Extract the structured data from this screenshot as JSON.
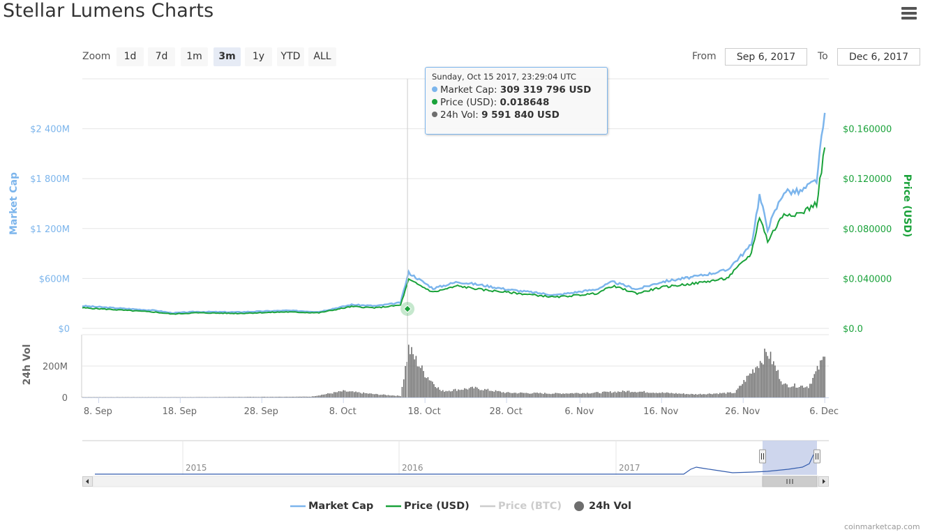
{
  "title": "Stellar Lumens Charts",
  "zoom": {
    "label": "Zoom",
    "buttons": [
      "1d",
      "7d",
      "1m",
      "3m",
      "1y",
      "YTD",
      "ALL"
    ],
    "selected": "3m"
  },
  "range": {
    "from_label": "From",
    "from_value": "Sep 6, 2017",
    "to_label": "To",
    "to_value": "Dec 6, 2017"
  },
  "tooltip": {
    "header": "Sunday, Oct 15 2017, 23:29:04 UTC",
    "rows": [
      {
        "name": "Market Cap",
        "value": "309 319 796 USD",
        "color": "#7cb5ec"
      },
      {
        "name": "Price (USD)",
        "value": "0.018648",
        "color": "#1aa23a"
      },
      {
        "name": "24h Vol",
        "value": "9 591 840 USD",
        "color": "#6e6e6e"
      }
    ]
  },
  "legend": [
    {
      "name": "Market Cap",
      "color": "#7cb5ec",
      "symbol": "line",
      "active": true
    },
    {
      "name": "Price (USD)",
      "color": "#1aa23a",
      "symbol": "line",
      "active": true
    },
    {
      "name": "Price (BTC)",
      "color": "#cccccc",
      "symbol": "line",
      "active": false
    },
    {
      "name": "24h Vol",
      "color": "#6e6e6e",
      "symbol": "circle",
      "active": true
    }
  ],
  "credit": "coinmarketcap.com",
  "chart_data": {
    "type": "line",
    "x_range": [
      "2017-09-06",
      "2017-12-06"
    ],
    "x_tick_labels": [
      "8. Sep",
      "18. Sep",
      "28. Sep",
      "8. Oct",
      "18. Oct",
      "28. Oct",
      "6. Nov",
      "16. Nov",
      "26. Nov",
      "6. Dec"
    ],
    "y_left": {
      "label": "Market Cap",
      "tick_labels": [
        "$0",
        "$600M",
        "$1 200M",
        "$1 800M",
        "$2 400M"
      ],
      "range": [
        0,
        3000000000
      ]
    },
    "y_right": {
      "label": "Price (USD)",
      "tick_labels": [
        "$0.0",
        "$0.040000",
        "$0.080000",
        "$0.120000",
        "$0.160000"
      ],
      "range": [
        0,
        0.2
      ]
    },
    "y_volume": {
      "label": "24h Vol",
      "tick_labels": [
        "0",
        "200M"
      ],
      "range": [
        0,
        400000000
      ]
    },
    "grid": true,
    "legend_position": "bottom",
    "series": [
      {
        "name": "Market Cap",
        "x": [
          "2017-09-06",
          "2017-09-10",
          "2017-09-15",
          "2017-09-17",
          "2017-09-20",
          "2017-09-25",
          "2017-10-01",
          "2017-10-05",
          "2017-10-09",
          "2017-10-12",
          "2017-10-15",
          "2017-10-16",
          "2017-10-19",
          "2017-10-22",
          "2017-10-25",
          "2017-10-28",
          "2017-11-03",
          "2017-11-08",
          "2017-11-10",
          "2017-11-13",
          "2017-11-16",
          "2017-11-20",
          "2017-11-24",
          "2017-11-27",
          "2017-11-28",
          "2017-11-29",
          "2017-12-01",
          "2017-12-03",
          "2017-12-05",
          "2017-12-06"
        ],
        "values": [
          270000000,
          245000000,
          215000000,
          185000000,
          200000000,
          195000000,
          215000000,
          200000000,
          285000000,
          270000000,
          309000000,
          670000000,
          480000000,
          560000000,
          520000000,
          470000000,
          400000000,
          470000000,
          560000000,
          470000000,
          560000000,
          620000000,
          700000000,
          1000000000,
          1600000000,
          1200000000,
          1650000000,
          1640000000,
          1780000000,
          2590000000
        ]
      },
      {
        "name": "Price (USD)",
        "x": [
          "2017-09-06",
          "2017-09-10",
          "2017-09-15",
          "2017-09-17",
          "2017-09-20",
          "2017-09-25",
          "2017-10-01",
          "2017-10-05",
          "2017-10-09",
          "2017-10-12",
          "2017-10-15",
          "2017-10-16",
          "2017-10-19",
          "2017-10-22",
          "2017-10-25",
          "2017-10-28",
          "2017-11-03",
          "2017-11-08",
          "2017-11-10",
          "2017-11-13",
          "2017-11-16",
          "2017-11-20",
          "2017-11-24",
          "2017-11-27",
          "2017-11-28",
          "2017-11-29",
          "2017-12-01",
          "2017-12-03",
          "2017-12-05",
          "2017-12-06"
        ],
        "values": [
          0.0165,
          0.015,
          0.013,
          0.0115,
          0.0125,
          0.012,
          0.0132,
          0.0125,
          0.0175,
          0.0165,
          0.018648,
          0.039,
          0.029,
          0.034,
          0.031,
          0.029,
          0.025,
          0.028,
          0.034,
          0.028,
          0.033,
          0.036,
          0.04,
          0.06,
          0.09,
          0.07,
          0.092,
          0.092,
          0.1,
          0.145
        ]
      },
      {
        "name": "24h Vol",
        "x": [
          "2017-09-06",
          "2017-09-20",
          "2017-10-04",
          "2017-10-08",
          "2017-10-12",
          "2017-10-15",
          "2017-10-16",
          "2017-10-18",
          "2017-10-20",
          "2017-10-24",
          "2017-10-28",
          "2017-11-03",
          "2017-11-08",
          "2017-11-12",
          "2017-11-20",
          "2017-11-25",
          "2017-11-27",
          "2017-11-29",
          "2017-12-01",
          "2017-12-04",
          "2017-12-06"
        ],
        "values": [
          2000000,
          2000000,
          5000000,
          40000000,
          20000000,
          9591840,
          310000000,
          150000000,
          40000000,
          60000000,
          30000000,
          25000000,
          30000000,
          40000000,
          20000000,
          30000000,
          160000000,
          290000000,
          80000000,
          70000000,
          260000000
        ]
      }
    ],
    "navigator": {
      "year_labels": [
        "2015",
        "2016",
        "2017"
      ]
    }
  }
}
